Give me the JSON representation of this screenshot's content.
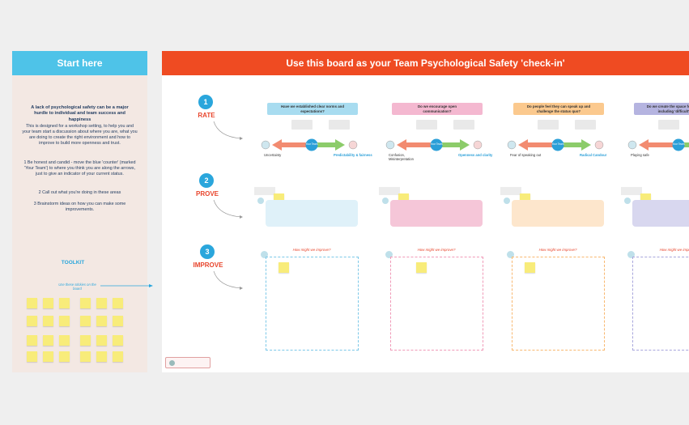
{
  "start_panel": {
    "title": "Start here",
    "intro": "A lack of psychological safety can be a major hurdle to individual and team success and happiness",
    "description": "This is designed for a workshop setting, to help you and your team start a discussion about where you are, what you are doing to create the right environment and how to improve to build more openness and trust.",
    "steps": [
      "1 Be honest and candid - move the blue 'counter' (marked 'Your Team') to where you think you are along the arrows, just to give an indicator of your current status.",
      "2 Call out what you're doing in these areas",
      "3 Brainstorm ideas on how you can make some improvements."
    ],
    "toolkit": {
      "title": "TOOLKIT",
      "note": "Use these stickies on the board"
    }
  },
  "board": {
    "title": "Use this board as your Team Psychological Safety 'check-in'",
    "stages": [
      {
        "number": "1",
        "label": "RATE"
      },
      {
        "number": "2",
        "label": "PROVE"
      },
      {
        "number": "3",
        "label": "IMPROVE"
      }
    ],
    "counter_label": "Your Team",
    "columns": [
      {
        "question": "Have we established clear norms and expectations?",
        "left_label": "Uncertainty",
        "right_label": "Predictability & fairness",
        "improve_prompt": "How might we improve?"
      },
      {
        "question": "Do we encourage open communication?",
        "left_label": "Confusion, Misinterpretation",
        "right_label": "Openness and clarity",
        "improve_prompt": "How might we improve?"
      },
      {
        "question": "Do people feel they can speak up and challenge the status quo?",
        "left_label": "Fear of speaking out",
        "right_label": "Radical Candour",
        "improve_prompt": "How might we improve?"
      },
      {
        "question": "Do we create the space for new ideas - including 'difficult' ones?",
        "left_label": "Playing safe",
        "right_label": "",
        "improve_prompt": "How might we improve?"
      }
    ]
  }
}
